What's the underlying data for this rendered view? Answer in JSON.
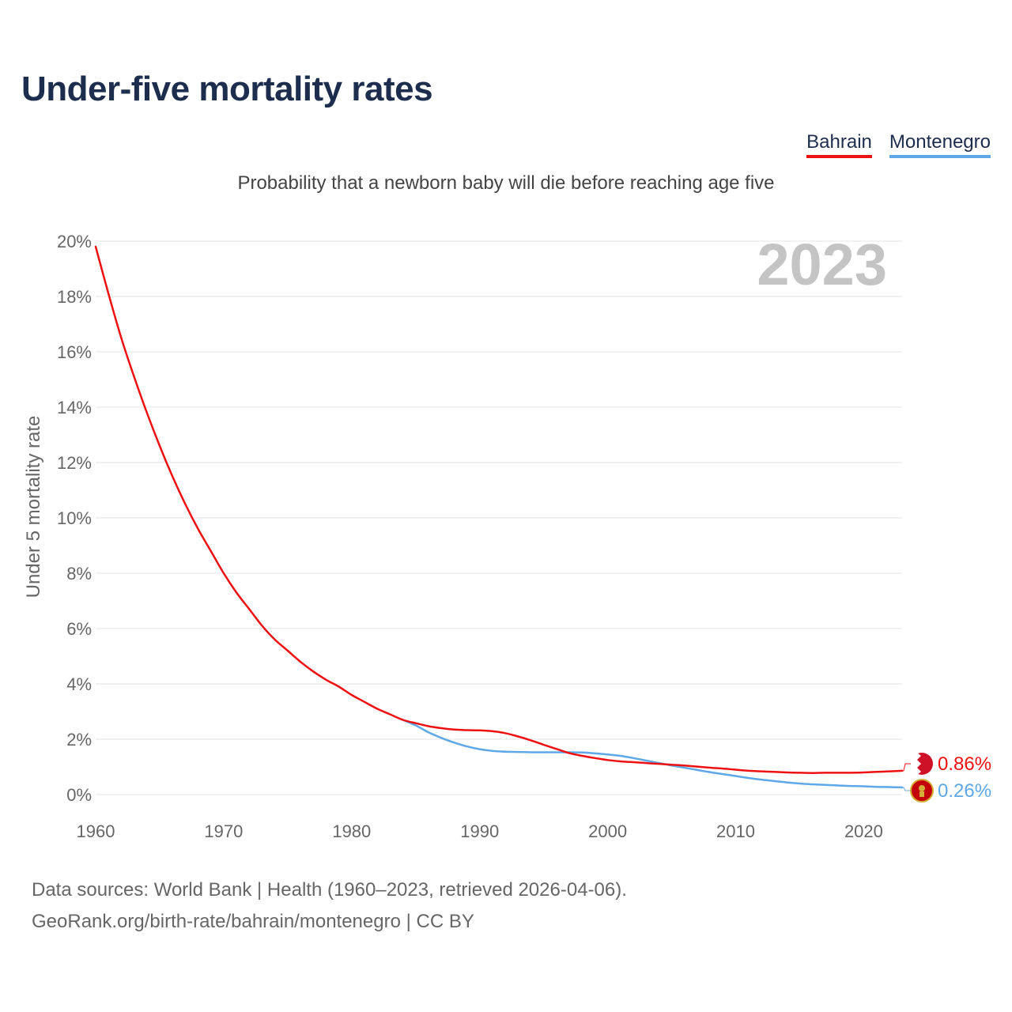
{
  "title": "Under-five mortality rates",
  "subtitle": "Probability that a newborn baby will die before reaching age five",
  "legend": [
    {
      "label": "Bahrain",
      "color": "#ee1111"
    },
    {
      "label": "Montenegro",
      "color": "#5fa8e8"
    }
  ],
  "source": {
    "line1": "Data sources: World Bank | Health (1960–2023, retrieved 2026-04-06).",
    "line2": "GeoRank.org/birth-rate/bahrain/montenegro | CC BY"
  },
  "chart_data": {
    "type": "line",
    "ylabel": "Under 5 mortality rate",
    "year_watermark": "2023",
    "xlim": [
      1960,
      2023
    ],
    "ylim": [
      0,
      20
    ],
    "xticks": [
      1960,
      1970,
      1980,
      1990,
      2000,
      2010,
      2020
    ],
    "yticks": [
      0,
      2,
      4,
      6,
      8,
      10,
      12,
      14,
      16,
      18,
      20
    ],
    "ytick_labels": [
      "0%",
      "2%",
      "4%",
      "6%",
      "8%",
      "10%",
      "12%",
      "14%",
      "16%",
      "18%",
      "20%"
    ],
    "grid": true,
    "series": [
      {
        "name": "Bahrain",
        "color": "#ee1111",
        "end_label": "0.86%",
        "flag_icon": "bahrain-flag-icon",
        "x": [
          1960,
          1961,
          1962,
          1963,
          1964,
          1965,
          1966,
          1967,
          1968,
          1969,
          1970,
          1971,
          1972,
          1973,
          1974,
          1975,
          1976,
          1977,
          1978,
          1979,
          1980,
          1981,
          1982,
          1983,
          1984,
          1985,
          1986,
          1987,
          1988,
          1989,
          1990,
          1991,
          1992,
          1993,
          1994,
          1995,
          1996,
          1997,
          1998,
          1999,
          2000,
          2001,
          2002,
          2003,
          2004,
          2005,
          2006,
          2007,
          2008,
          2009,
          2010,
          2011,
          2012,
          2013,
          2014,
          2015,
          2016,
          2017,
          2018,
          2019,
          2020,
          2021,
          2022,
          2023
        ],
        "values": [
          19.8,
          18.1,
          16.5,
          15.1,
          13.8,
          12.6,
          11.5,
          10.5,
          9.6,
          8.8,
          8.0,
          7.3,
          6.7,
          6.1,
          5.6,
          5.2,
          4.8,
          4.45,
          4.15,
          3.9,
          3.6,
          3.35,
          3.1,
          2.9,
          2.7,
          2.58,
          2.47,
          2.4,
          2.35,
          2.33,
          2.32,
          2.29,
          2.22,
          2.1,
          1.96,
          1.8,
          1.65,
          1.5,
          1.4,
          1.32,
          1.25,
          1.2,
          1.17,
          1.14,
          1.11,
          1.08,
          1.05,
          1.01,
          0.97,
          0.94,
          0.9,
          0.86,
          0.84,
          0.82,
          0.8,
          0.79,
          0.78,
          0.79,
          0.79,
          0.79,
          0.8,
          0.82,
          0.84,
          0.86
        ]
      },
      {
        "name": "Montenegro",
        "color": "#5fa8e8",
        "end_label": "0.26%",
        "flag_icon": "montenegro-flag-icon",
        "x": [
          1984,
          1985,
          1986,
          1987,
          1988,
          1989,
          1990,
          1991,
          1992,
          1993,
          1994,
          1995,
          1996,
          1997,
          1998,
          1999,
          2000,
          2001,
          2002,
          2003,
          2004,
          2005,
          2006,
          2007,
          2008,
          2009,
          2010,
          2011,
          2012,
          2013,
          2014,
          2015,
          2016,
          2017,
          2018,
          2019,
          2020,
          2021,
          2022,
          2023
        ],
        "values": [
          2.7,
          2.5,
          2.25,
          2.05,
          1.88,
          1.74,
          1.64,
          1.58,
          1.55,
          1.54,
          1.53,
          1.53,
          1.53,
          1.53,
          1.52,
          1.49,
          1.45,
          1.4,
          1.32,
          1.23,
          1.14,
          1.05,
          0.97,
          0.89,
          0.81,
          0.74,
          0.67,
          0.6,
          0.54,
          0.49,
          0.44,
          0.4,
          0.37,
          0.35,
          0.33,
          0.31,
          0.3,
          0.28,
          0.27,
          0.26
        ]
      }
    ]
  }
}
